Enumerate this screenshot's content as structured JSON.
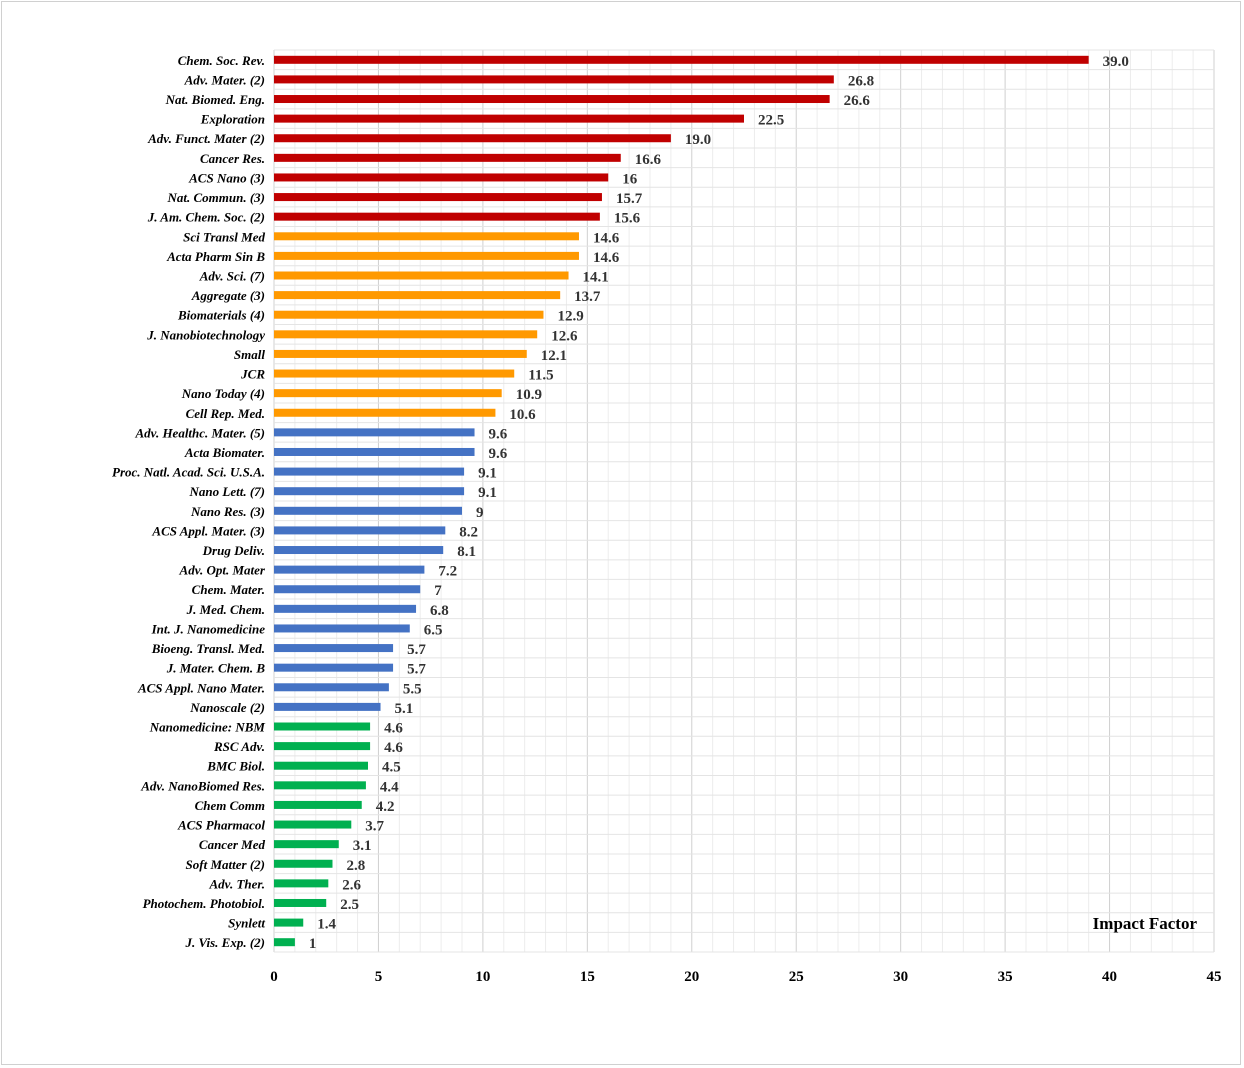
{
  "chart_data": {
    "type": "bar",
    "orientation": "horizontal",
    "xlabel": "Impact Factor",
    "ylabel": "",
    "xlim": [
      0,
      45
    ],
    "x_ticks": [
      "0",
      "5",
      "10",
      "15",
      "20",
      "25",
      "30",
      "35",
      "40",
      "45"
    ],
    "grid": true,
    "colors": {
      "red": "#c00000",
      "orange": "#ff9900",
      "blue": "#4472c4",
      "green": "#00b050"
    },
    "bars": [
      {
        "label": "Chem. Soc. Rev.",
        "value": 39.0,
        "display": "39.0",
        "color": "red"
      },
      {
        "label": "Adv. Mater. (2)",
        "value": 26.8,
        "display": "26.8",
        "color": "red"
      },
      {
        "label": "Nat. Biomed. Eng.",
        "value": 26.6,
        "display": "26.6",
        "color": "red"
      },
      {
        "label": "Exploration",
        "value": 22.5,
        "display": "22.5",
        "color": "red"
      },
      {
        "label": "Adv. Funct. Mater (2)",
        "value": 19.0,
        "display": "19.0",
        "color": "red"
      },
      {
        "label": "Cancer Res.",
        "value": 16.6,
        "display": "16.6",
        "color": "red"
      },
      {
        "label": "ACS Nano (3)",
        "value": 16,
        "display": "16",
        "color": "red"
      },
      {
        "label": "Nat. Commun. (3)",
        "value": 15.7,
        "display": "15.7",
        "color": "red"
      },
      {
        "label": "J. Am. Chem. Soc. (2)",
        "value": 15.6,
        "display": "15.6",
        "color": "red"
      },
      {
        "label": "Sci Transl Med",
        "value": 14.6,
        "display": "14.6",
        "color": "orange"
      },
      {
        "label": "Acta Pharm Sin B",
        "value": 14.6,
        "display": "14.6",
        "color": "orange"
      },
      {
        "label": "Adv. Sci. (7)",
        "value": 14.1,
        "display": "14.1",
        "color": "orange"
      },
      {
        "label": "Aggregate (3)",
        "value": 13.7,
        "display": "13.7",
        "color": "orange"
      },
      {
        "label": "Biomaterials (4)",
        "value": 12.9,
        "display": "12.9",
        "color": "orange"
      },
      {
        "label": "J. Nanobiotechnology",
        "value": 12.6,
        "display": "12.6",
        "color": "orange"
      },
      {
        "label": "Small",
        "value": 12.1,
        "display": "12.1",
        "color": "orange"
      },
      {
        "label": "JCR",
        "value": 11.5,
        "display": "11.5",
        "color": "orange"
      },
      {
        "label": "Nano Today (4)",
        "value": 10.9,
        "display": "10.9",
        "color": "orange"
      },
      {
        "label": "Cell Rep. Med.",
        "value": 10.6,
        "display": "10.6",
        "color": "orange"
      },
      {
        "label": "Adv. Healthc. Mater. (5)",
        "value": 9.6,
        "display": "9.6",
        "color": "blue"
      },
      {
        "label": "Acta Biomater.",
        "value": 9.6,
        "display": "9.6",
        "color": "blue"
      },
      {
        "label": "Proc. Natl. Acad. Sci. U.S.A.",
        "value": 9.1,
        "display": "9.1",
        "color": "blue"
      },
      {
        "label": "Nano Lett. (7)",
        "value": 9.1,
        "display": "9.1",
        "color": "blue"
      },
      {
        "label": "Nano Res. (3)",
        "value": 9,
        "display": "9",
        "color": "blue"
      },
      {
        "label": "ACS Appl. Mater. (3)",
        "value": 8.2,
        "display": "8.2",
        "color": "blue"
      },
      {
        "label": "Drug Deliv.",
        "value": 8.1,
        "display": "8.1",
        "color": "blue"
      },
      {
        "label": "Adv. Opt. Mater",
        "value": 7.2,
        "display": "7.2",
        "color": "blue"
      },
      {
        "label": "Chem. Mater.",
        "value": 7,
        "display": "7",
        "color": "blue"
      },
      {
        "label": "J. Med. Chem.",
        "value": 6.8,
        "display": "6.8",
        "color": "blue"
      },
      {
        "label": "Int. J. Nanomedicine",
        "value": 6.5,
        "display": "6.5",
        "color": "blue"
      },
      {
        "label": "Bioeng. Transl. Med.",
        "value": 5.7,
        "display": "5.7",
        "color": "blue"
      },
      {
        "label": "J. Mater. Chem. B",
        "value": 5.7,
        "display": "5.7",
        "color": "blue"
      },
      {
        "label": "ACS Appl. Nano Mater.",
        "value": 5.5,
        "display": "5.5",
        "color": "blue"
      },
      {
        "label": "Nanoscale (2)",
        "value": 5.1,
        "display": "5.1",
        "color": "blue"
      },
      {
        "label": "Nanomedicine: NBM",
        "value": 4.6,
        "display": "4.6",
        "color": "green"
      },
      {
        "label": "RSC Adv.",
        "value": 4.6,
        "display": "4.6",
        "color": "green"
      },
      {
        "label": "BMC Biol.",
        "value": 4.5,
        "display": "4.5",
        "color": "green"
      },
      {
        "label": "Adv. NanoBiomed Res.",
        "value": 4.4,
        "display": "4.4",
        "color": "green"
      },
      {
        "label": "Chem Comm",
        "value": 4.2,
        "display": "4.2",
        "color": "green"
      },
      {
        "label": "ACS Pharmacol",
        "value": 3.7,
        "display": "3.7",
        "color": "green"
      },
      {
        "label": "Cancer Med",
        "value": 3.1,
        "display": "3.1",
        "color": "green"
      },
      {
        "label": "Soft Matter (2)",
        "value": 2.8,
        "display": "2.8",
        "color": "green"
      },
      {
        "label": "Adv. Ther.",
        "value": 2.6,
        "display": "2.6",
        "color": "green"
      },
      {
        "label": "Photochem. Photobiol.",
        "value": 2.5,
        "display": "2.5",
        "color": "green"
      },
      {
        "label": "Synlett",
        "value": 1.4,
        "display": "1.4",
        "color": "green"
      },
      {
        "label": "J. Vis. Exp. (2)",
        "value": 1,
        "display": "1",
        "color": "green"
      }
    ]
  }
}
